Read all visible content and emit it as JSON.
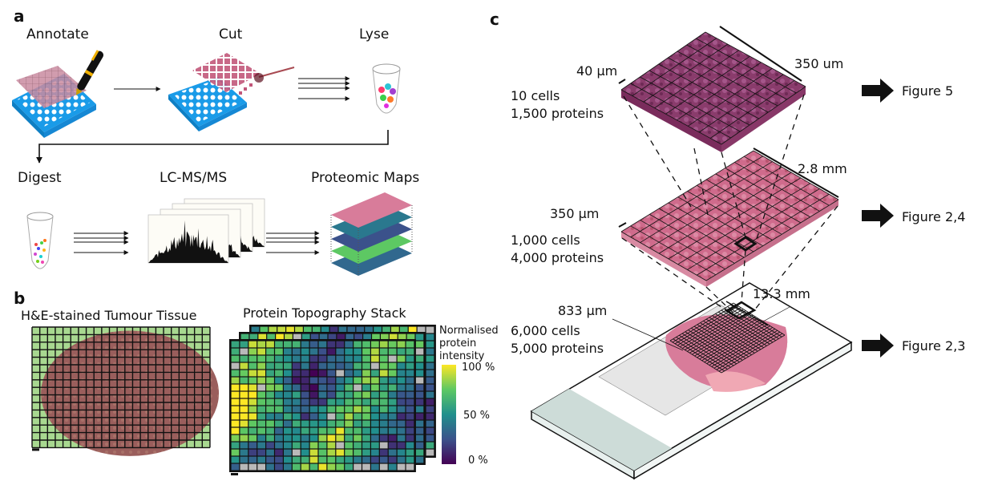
{
  "panel_a": {
    "label": "a",
    "steps": [
      {
        "id": "annotate",
        "label": "Annotate",
        "icon": "well-plate-with-annotated-slide-and-pen"
      },
      {
        "id": "cut",
        "label": "Cut",
        "icon": "well-plate-with-laser-cut-tiles"
      },
      {
        "id": "lyse",
        "label": "Lyse",
        "icon": "tube-with-cells"
      },
      {
        "id": "digest",
        "label": "Digest",
        "icon": "tube-with-peptides"
      },
      {
        "id": "lcms",
        "label": "LC-MS/MS",
        "icon": "mass-spectra-stack"
      },
      {
        "id": "maps",
        "label": "Proteomic Maps",
        "icon": "proteomic-map-layers"
      }
    ]
  },
  "panel_b": {
    "label": "b",
    "tissue_title": "H&E-stained Tumour Tissue",
    "stack_title": "Protein Topography Stack",
    "colorbar": {
      "title_lines": [
        "Normalised",
        "protein",
        "intensity"
      ],
      "ticks": [
        "100 %",
        "50 %",
        "0 %"
      ],
      "colormap": [
        "#440154",
        "#3b528b",
        "#21908d",
        "#5dc863",
        "#fde725"
      ],
      "missing_color": "#b9b9b9"
    },
    "heatmap_grid": {
      "columns": 21,
      "rows": 18
    }
  },
  "panel_c": {
    "label": "c",
    "levels": [
      {
        "id": "top",
        "cells": "10 cells",
        "proteins": "1,500 proteins",
        "tile_size": "40 µm",
        "extent": "350 um",
        "figure_ref": "Figure 5"
      },
      {
        "id": "middle",
        "cells": "1,000 cells",
        "proteins": "4,000 proteins",
        "tile_size": "350 µm",
        "extent": "2.8 mm",
        "figure_ref": "Figure 2,4"
      },
      {
        "id": "bottom",
        "cells": "6,000 cells",
        "proteins": "5,000 proteins",
        "tile_size": "833 µm",
        "extent": "13.3 mm",
        "figure_ref": "Figure 2,3"
      }
    ],
    "colors": {
      "top_tissue": "#8a3c6c",
      "middle_tissue": "#cf6b8c",
      "slide_frost": "#cddcd8"
    }
  }
}
